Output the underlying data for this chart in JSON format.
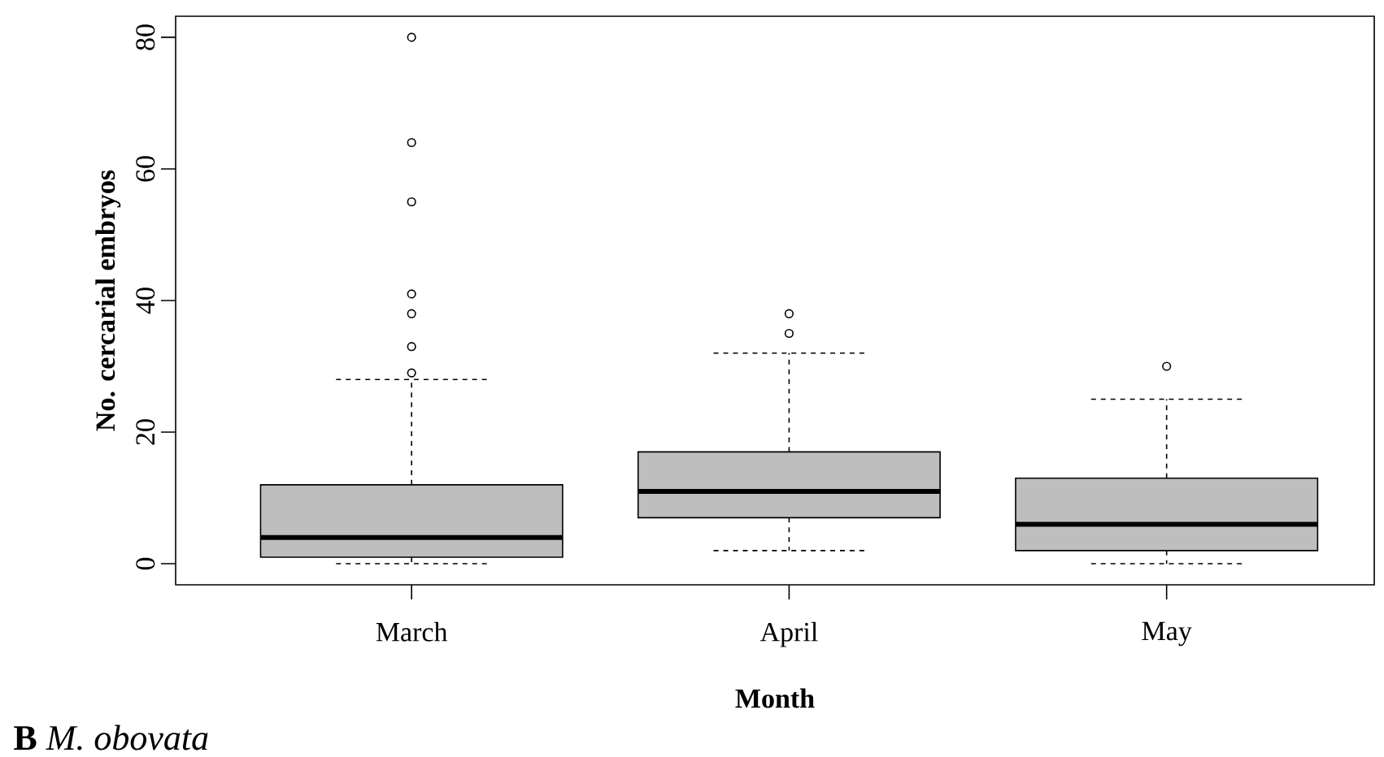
{
  "chart_data": {
    "type": "box",
    "xlabel": "Month",
    "ylabel": "No. cercarial embryos",
    "categories": [
      "March",
      "April",
      "May"
    ],
    "boxes": [
      {
        "low": 0,
        "q1": 1,
        "median": 4,
        "q3": 12,
        "high": 28,
        "outliers": [
          29,
          33,
          38,
          41,
          55,
          64,
          80
        ]
      },
      {
        "low": 2,
        "q1": 7,
        "median": 11,
        "q3": 17,
        "high": 32,
        "outliers": [
          35,
          38
        ]
      },
      {
        "low": 0,
        "q1": 2,
        "median": 6,
        "q3": 13,
        "high": 25,
        "outliers": [
          30
        ]
      }
    ],
    "color": "#bebebe",
    "marker": "circle",
    "grid": false,
    "ylim": [
      -3.2,
      83.2
    ],
    "yticks": [
      0,
      20,
      40,
      60,
      80
    ],
    "annotations": [
      "**B** *M. obovata*"
    ]
  }
}
